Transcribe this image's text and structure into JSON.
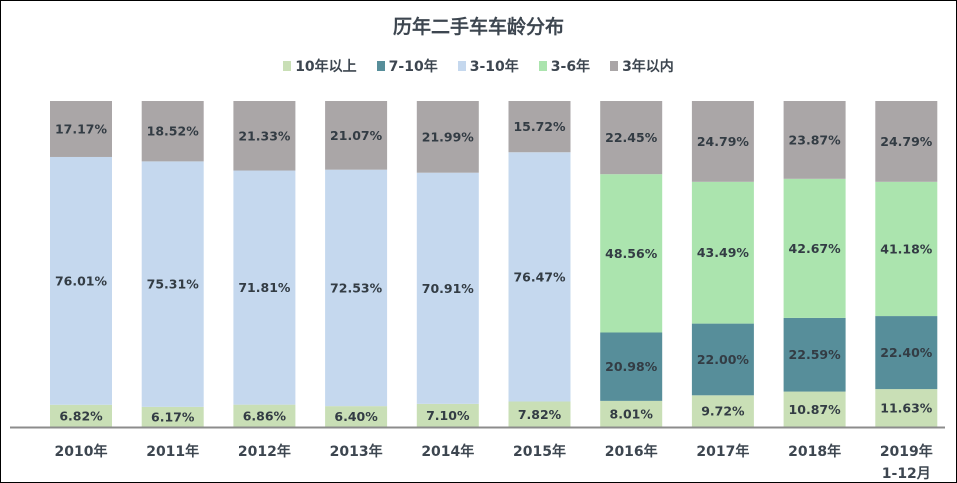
{
  "chart_data": {
    "type": "bar",
    "stacked": true,
    "title": "历年二手车车龄分布",
    "legend_position": "top",
    "grid": false,
    "ylim": [
      0,
      100
    ],
    "categories": [
      [
        "2010年"
      ],
      [
        "2011年"
      ],
      [
        "2012年"
      ],
      [
        "2013年"
      ],
      [
        "2014年"
      ],
      [
        "2015年"
      ],
      [
        "2016年"
      ],
      [
        "2017年"
      ],
      [
        "2018年"
      ],
      [
        "2019年",
        "1-12月"
      ]
    ],
    "series": [
      {
        "name": "10年以上",
        "color": "#c9dfb6",
        "values": [
          6.82,
          6.17,
          6.86,
          6.4,
          7.1,
          7.82,
          8.01,
          9.72,
          10.87,
          11.63
        ]
      },
      {
        "name": "7-10年",
        "color": "#578e9a",
        "values": [
          null,
          null,
          null,
          null,
          null,
          null,
          20.98,
          22.0,
          22.59,
          22.4
        ]
      },
      {
        "name": "3-10年",
        "color": "#c5d8ee",
        "values": [
          76.01,
          75.31,
          71.81,
          72.53,
          70.91,
          76.47,
          null,
          null,
          null,
          null
        ]
      },
      {
        "name": "3-6年",
        "color": "#abe4ae",
        "values": [
          null,
          null,
          null,
          null,
          null,
          null,
          48.56,
          43.49,
          42.67,
          41.18
        ]
      },
      {
        "name": "3年以内",
        "color": "#aaa6a7",
        "values": [
          17.17,
          18.52,
          21.33,
          21.07,
          21.99,
          15.72,
          22.45,
          24.79,
          23.87,
          24.79
        ]
      }
    ]
  }
}
